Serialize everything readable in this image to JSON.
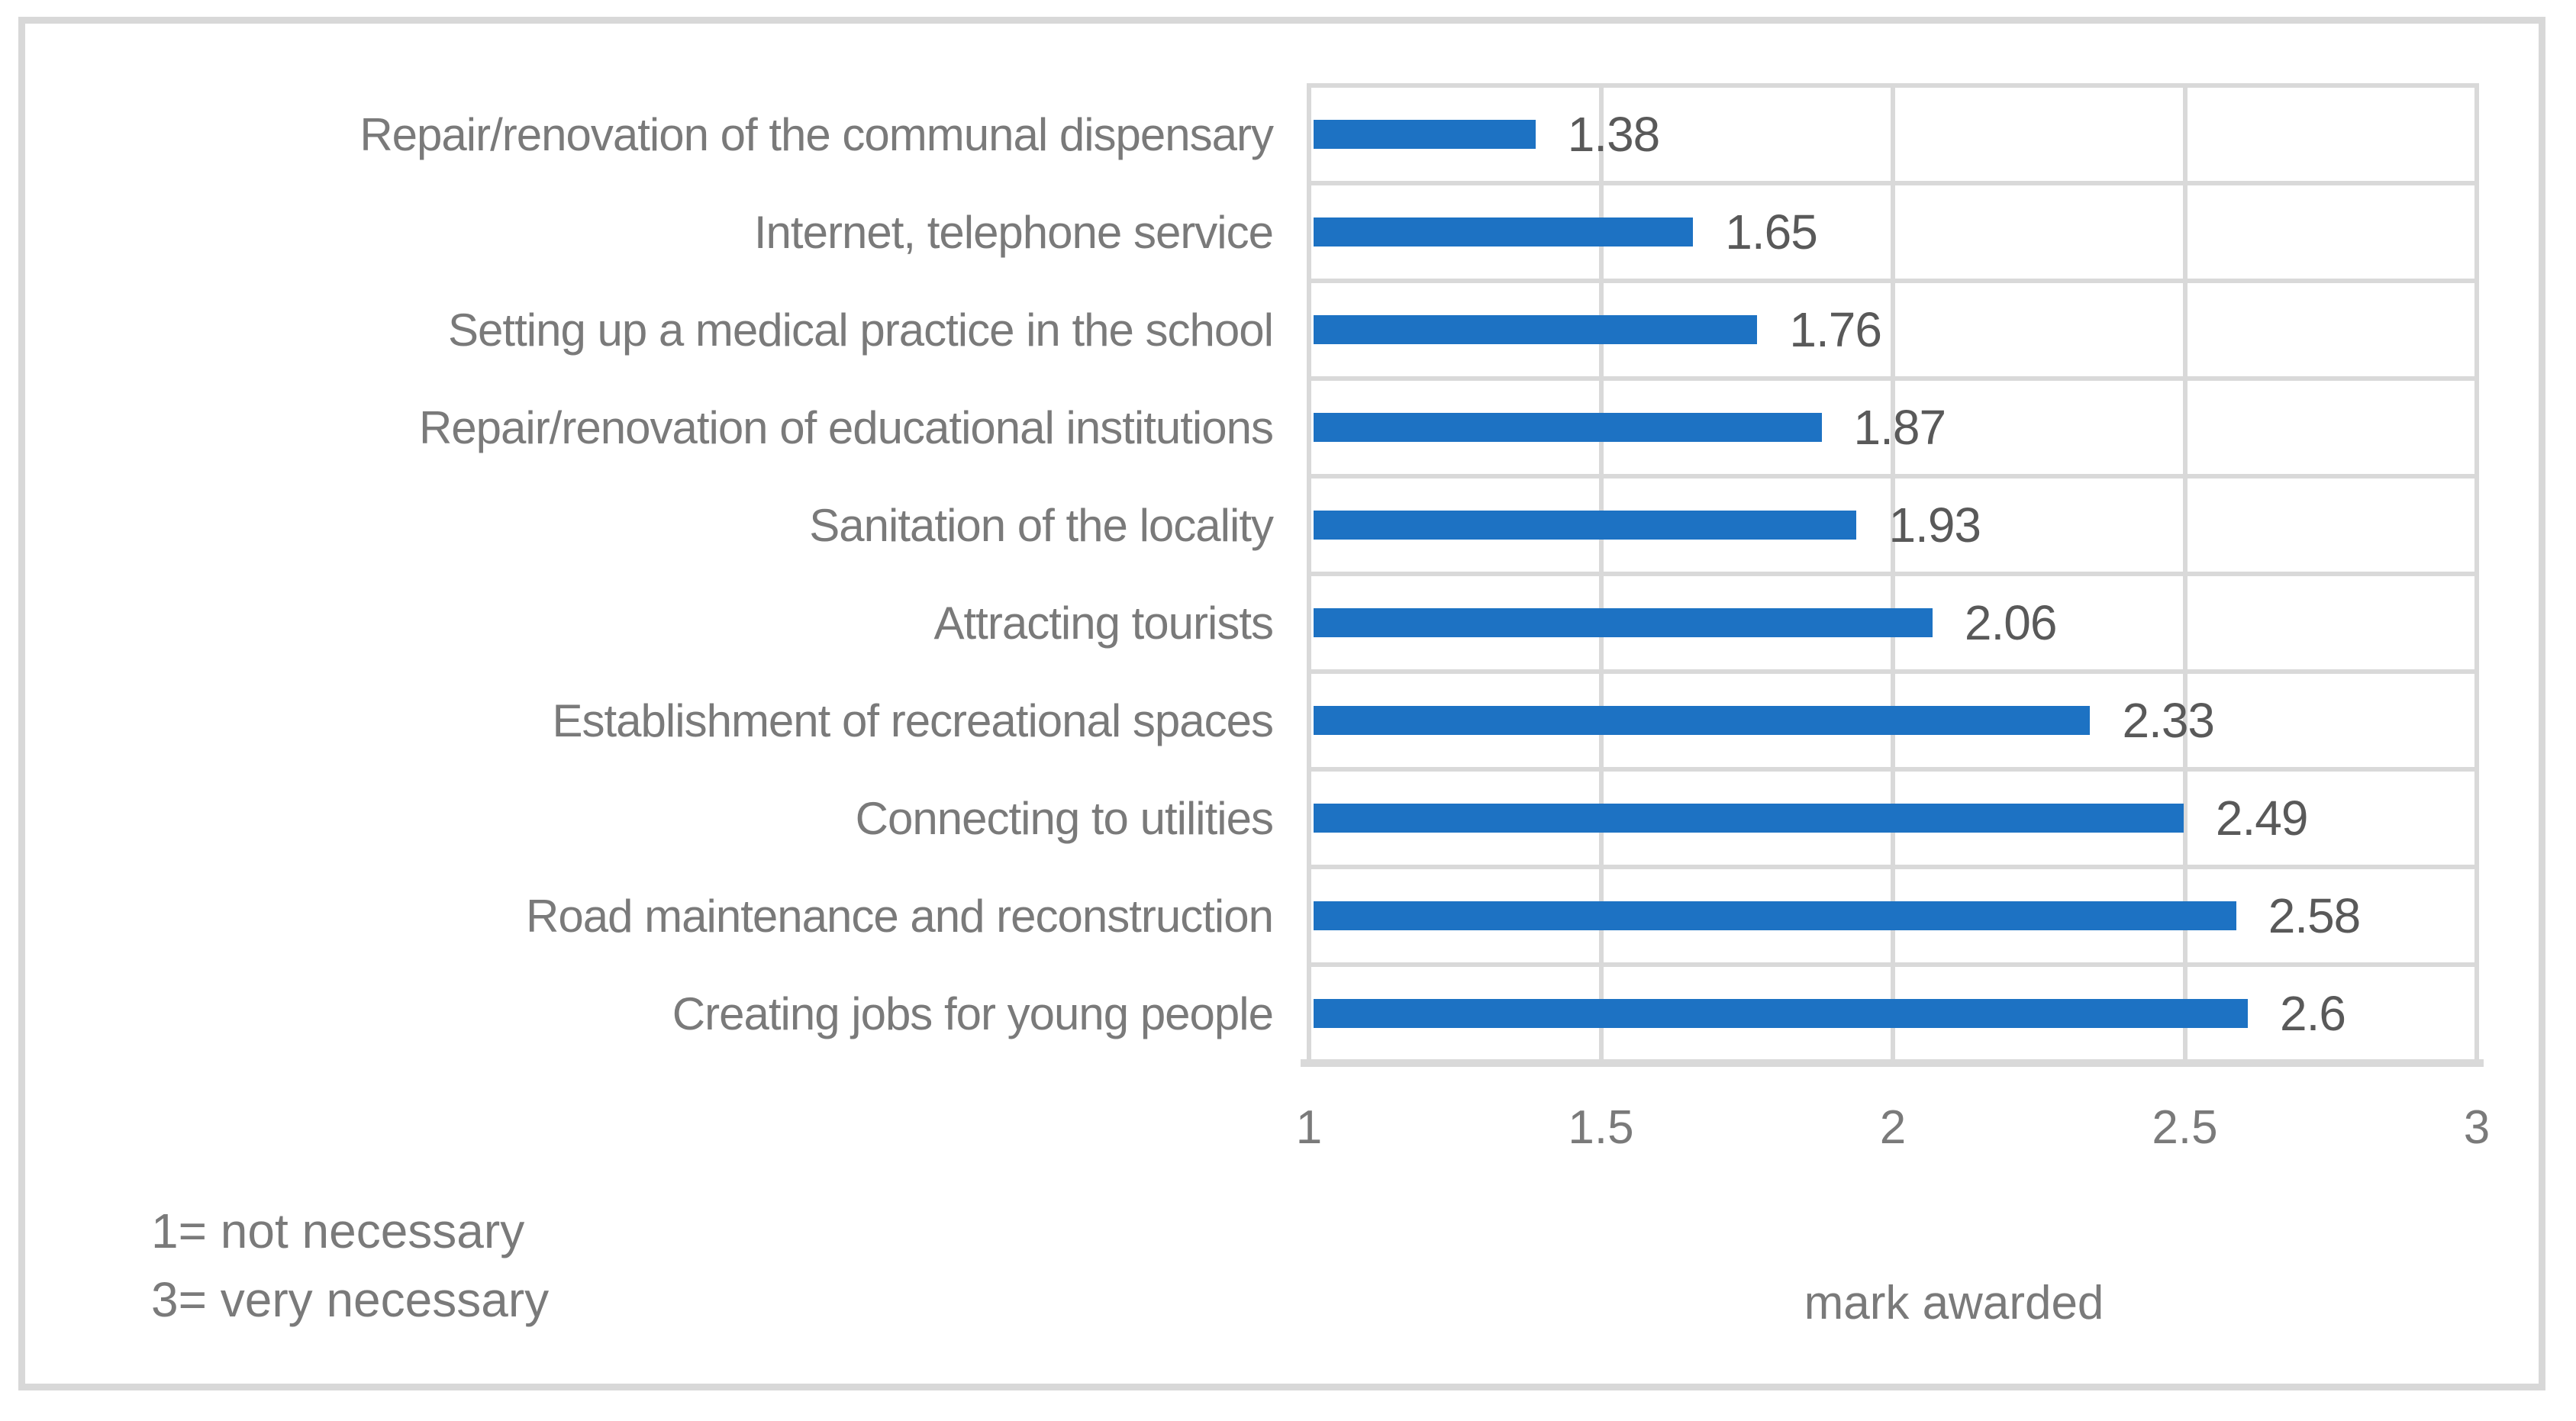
{
  "chart_data": {
    "type": "bar",
    "orientation": "horizontal",
    "categories": [
      "Repair/renovation of the communal dispensary",
      "Internet, telephone service",
      "Setting up a medical practice in the school",
      "Repair/renovation of educational institutions",
      "Sanitation of the locality",
      "Attracting tourists",
      "Establishment of recreational spaces",
      "Connecting to utilities",
      "Road maintenance and reconstruction",
      "Creating jobs for young people"
    ],
    "values": [
      1.38,
      1.65,
      1.76,
      1.87,
      1.93,
      2.06,
      2.33,
      2.49,
      2.58,
      2.6
    ],
    "value_labels": [
      "1.38",
      "1.65",
      "1.76",
      "1.87",
      "1.93",
      "2.06",
      "2.33",
      "2.49",
      "2.58",
      "2.6"
    ],
    "xlabel": "mark awarded",
    "xlim": [
      1,
      3
    ],
    "xticks": [
      1,
      1.5,
      2,
      2.5,
      3
    ],
    "xtick_labels": [
      "1",
      "1.5",
      "2",
      "2.5",
      "3"
    ],
    "grid": true,
    "legend_position": "none",
    "bar_color": "#1d72c3",
    "gridline_color": "#d9d9d9",
    "annotations": {
      "scale_note_1": "1= not necessary",
      "scale_note_2": "3= very necessary"
    }
  }
}
